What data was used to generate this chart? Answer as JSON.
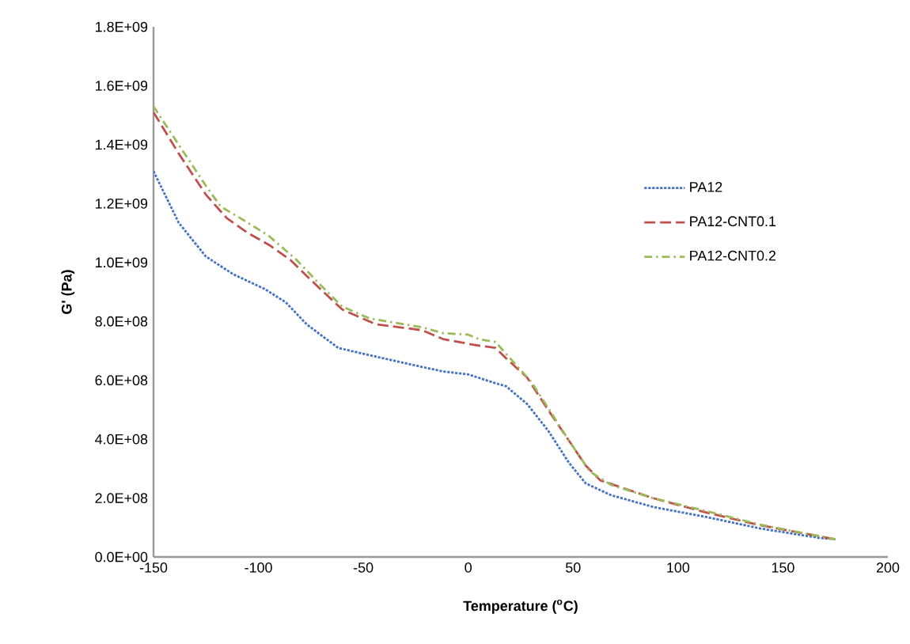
{
  "chart_data": {
    "type": "line",
    "xlabel": "Temperature ($^{o}$C)",
    "ylabel": "G' (Pa)",
    "xlim": [
      -150,
      200
    ],
    "xticks": [
      -150,
      -100,
      -50,
      0,
      50,
      100,
      150,
      200
    ],
    "ylim": [
      0,
      1800000000.0
    ],
    "yticks": [
      {
        "value": 0,
        "label": "0.0E+00"
      },
      {
        "value": 200000000.0,
        "label": "2.0E+08"
      },
      {
        "value": 400000000.0,
        "label": "4.0E+08"
      },
      {
        "value": 600000000.0,
        "label": "6.0E+08"
      },
      {
        "value": 800000000.0,
        "label": "8.0E+08"
      },
      {
        "value": 1000000000.0,
        "label": "1.0E+09"
      },
      {
        "value": 1200000000.0,
        "label": "1.2E+09"
      },
      {
        "value": 1400000000.0,
        "label": "1.4E+09"
      },
      {
        "value": 1600000000.0,
        "label": "1.6E+09"
      },
      {
        "value": 1800000000.0,
        "label": "1.8E+09"
      }
    ],
    "grid": false,
    "legend": "right",
    "marker": "none",
    "series": [
      {
        "name": "PA12",
        "color": "#4472c4",
        "line_style": "dotted",
        "x": [
          -150,
          -138,
          -125,
          -112,
          -97,
          -87,
          -77,
          -62,
          -50,
          -25,
          -12,
          0,
          13,
          18,
          28,
          38,
          48,
          56,
          68,
          88,
          114,
          139,
          167,
          175
        ],
        "values": [
          1310000000.0,
          1135000000.0,
          1020000000.0,
          960000000.0,
          910000000.0,
          865000000.0,
          790000000.0,
          710000000.0,
          690000000.0,
          650000000.0,
          630000000.0,
          620000000.0,
          590000000.0,
          580000000.0,
          520000000.0,
          430000000.0,
          320000000.0,
          250000000.0,
          210000000.0,
          170000000.0,
          135000000.0,
          97000000.0,
          65000000.0,
          60000000.0
        ]
      },
      {
        "name": "PA12-CNT0.1",
        "color": "#c0504d",
        "line_style": "dashed",
        "x": [
          -150,
          -138,
          -125,
          -115,
          -105,
          -95,
          -85,
          -72,
          -60,
          -44,
          -22,
          -12,
          3,
          13,
          18,
          28,
          38,
          48,
          56,
          63,
          88,
          114,
          139,
          175
        ],
        "values": [
          1510000000.0,
          1370000000.0,
          1230000000.0,
          1150000000.0,
          1100000000.0,
          1060000000.0,
          1010000000.0,
          920000000.0,
          840000000.0,
          790000000.0,
          770000000.0,
          740000000.0,
          720000000.0,
          710000000.0,
          675000000.0,
          610000000.0,
          500000000.0,
          395000000.0,
          310000000.0,
          260000000.0,
          200000000.0,
          150000000.0,
          108000000.0,
          60000000.0
        ]
      },
      {
        "name": "PA12-CNT0.2",
        "color": "#9bbb59",
        "line_style": "dashdot",
        "x": [
          -150,
          -138,
          -125,
          -118,
          -105,
          -95,
          -82,
          -72,
          -60,
          -47,
          -22,
          -12,
          0,
          5,
          13,
          18,
          30,
          40,
          48,
          58,
          68,
          88,
          114,
          139,
          175
        ],
        "values": [
          1530000000.0,
          1400000000.0,
          1260000000.0,
          1190000000.0,
          1135000000.0,
          1090000000.0,
          1010000000.0,
          935000000.0,
          850000000.0,
          810000000.0,
          780000000.0,
          760000000.0,
          755000000.0,
          740000000.0,
          730000000.0,
          690000000.0,
          595000000.0,
          485000000.0,
          395000000.0,
          290000000.0,
          245000000.0,
          200000000.0,
          155000000.0,
          110000000.0,
          60000000.0
        ]
      }
    ]
  }
}
